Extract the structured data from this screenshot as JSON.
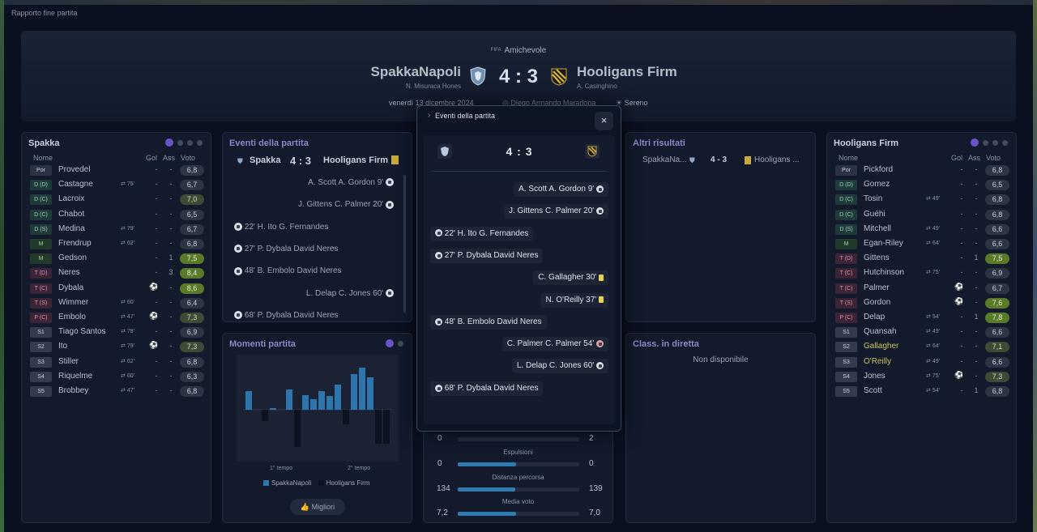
{
  "window": {
    "title": "Rapporto fine partita"
  },
  "header": {
    "competition_badge": "FIFA",
    "competition": "Amichevole",
    "home": {
      "name": "SpakkaNapoli",
      "coach": "N. Misuraca Hones"
    },
    "away": {
      "name": "Hooligans Firm",
      "coach": "A. Casinghino"
    },
    "score": "4 : 3",
    "date": "venerdì 13 dicembre 2024",
    "stadium": "Diego Armando Maradona",
    "weather": "Sereno"
  },
  "home_roster": {
    "title": "Spakka",
    "columns": {
      "name": "Nome",
      "gol": "Gol",
      "ass": "Ass",
      "voto": "Voto"
    },
    "players": [
      {
        "pos": "Por",
        "name": "Provedel",
        "sub": "",
        "gol": "-",
        "ass": "-",
        "rating": "6,8"
      },
      {
        "pos": "D (D)",
        "name": "Castagne",
        "sub": "75'",
        "gol": "-",
        "ass": "-",
        "rating": "6,7"
      },
      {
        "pos": "D (C)",
        "name": "Lacroix",
        "sub": "",
        "gol": "-",
        "ass": "-",
        "rating": "7,0"
      },
      {
        "pos": "D (C)",
        "name": "Chabot",
        "sub": "",
        "gol": "-",
        "ass": "-",
        "rating": "6,5"
      },
      {
        "pos": "D (S)",
        "name": "Medina",
        "sub": "79'",
        "gol": "-",
        "ass": "-",
        "rating": "6,7"
      },
      {
        "pos": "M",
        "name": "Frendrup",
        "sub": "62'",
        "gol": "-",
        "ass": "-",
        "rating": "6,8"
      },
      {
        "pos": "M",
        "name": "Gedson",
        "sub": "",
        "gol": "-",
        "ass": "1",
        "rating": "7,5"
      },
      {
        "pos": "T (D)",
        "name": "Neres",
        "sub": "",
        "gol": "-",
        "ass": "3",
        "rating": "8,4"
      },
      {
        "pos": "T (C)",
        "name": "Dybala",
        "sub": "",
        "gol": "",
        "ass": "-",
        "rating": "8,6"
      },
      {
        "pos": "T (S)",
        "name": "Wimmer",
        "sub": "60'",
        "gol": "-",
        "ass": "-",
        "rating": "6,4"
      },
      {
        "pos": "P (C)",
        "name": "Embolo",
        "sub": "47'",
        "gol": "",
        "ass": "-",
        "rating": "7,3"
      },
      {
        "pos": "S1",
        "name": "Tiago Santos",
        "sub": "78'",
        "gol": "-",
        "ass": "-",
        "rating": "6,9"
      },
      {
        "pos": "S2",
        "name": "Ito",
        "sub": "79'",
        "gol": "",
        "ass": "-",
        "rating": "7,3"
      },
      {
        "pos": "S3",
        "name": "Stiller",
        "sub": "62'",
        "gol": "-",
        "ass": "-",
        "rating": "6,8"
      },
      {
        "pos": "S4",
        "name": "Riquelme",
        "sub": "60'",
        "gol": "-",
        "ass": "-",
        "rating": "6,3"
      },
      {
        "pos": "S5",
        "name": "Brobbey",
        "sub": "47'",
        "gol": "-",
        "ass": "-",
        "rating": "6,8"
      }
    ]
  },
  "away_roster": {
    "title": "Hooligans Firm",
    "columns": {
      "name": "Nome",
      "gol": "Gol",
      "ass": "Ass",
      "voto": "Voto"
    },
    "players": [
      {
        "pos": "Por",
        "name": "Pickford",
        "sub": "",
        "gol": "-",
        "ass": "-",
        "rating": "6,8"
      },
      {
        "pos": "D (D)",
        "name": "Gomez",
        "sub": "",
        "gol": "-",
        "ass": "-",
        "rating": "6,5"
      },
      {
        "pos": "D (C)",
        "name": "Tosin",
        "sub": "49'",
        "gol": "-",
        "ass": "-",
        "rating": "6,8"
      },
      {
        "pos": "D (C)",
        "name": "Guéhi",
        "sub": "",
        "gol": "-",
        "ass": "-",
        "rating": "6,8"
      },
      {
        "pos": "D (S)",
        "name": "Mitchell",
        "sub": "49'",
        "gol": "-",
        "ass": "-",
        "rating": "6,6"
      },
      {
        "pos": "M",
        "name": "Egan-Riley",
        "sub": "64'",
        "gol": "-",
        "ass": "-",
        "rating": "6,6"
      },
      {
        "pos": "T (D)",
        "name": "Gittens",
        "sub": "",
        "gol": "-",
        "ass": "1",
        "rating": "7,5"
      },
      {
        "pos": "T (C)",
        "name": "Hutchinson",
        "sub": "75'",
        "gol": "-",
        "ass": "-",
        "rating": "6,9"
      },
      {
        "pos": "T (C)",
        "name": "Palmer",
        "sub": "",
        "gol": "",
        "ass": "-",
        "rating": "6,7"
      },
      {
        "pos": "T (S)",
        "name": "Gordon",
        "sub": "",
        "gol": "",
        "ass": "-",
        "rating": "7,6"
      },
      {
        "pos": "P (C)",
        "name": "Delap",
        "sub": "54'",
        "gol": "-",
        "ass": "1",
        "rating": "7,8"
      },
      {
        "pos": "S1",
        "name": "Quansah",
        "sub": "49'",
        "gol": "-",
        "ass": "-",
        "rating": "6,6"
      },
      {
        "pos": "S2",
        "name": "Gallagher",
        "sub": "64'",
        "gol": "-",
        "ass": "-",
        "rating": "7,1"
      },
      {
        "pos": "S3",
        "name": "O'Reilly",
        "sub": "49'",
        "gol": "-",
        "ass": "-",
        "rating": "6,6"
      },
      {
        "pos": "S4",
        "name": "Jones",
        "sub": "75'",
        "gol": "",
        "ass": "-",
        "rating": "7,3"
      },
      {
        "pos": "S5",
        "name": "Scott",
        "sub": "54'",
        "gol": "-",
        "ass": "1",
        "rating": "6,8"
      }
    ]
  },
  "events_panel": {
    "title": "Eventi della partita",
    "home": "Spakka",
    "score": "4 : 3",
    "away": "Hooligans Firm",
    "events": [
      {
        "side": "away",
        "text": "A. Scott A. Gordon 9'"
      },
      {
        "side": "away",
        "text": "J. Gittens C. Palmer 20'"
      },
      {
        "side": "home",
        "text": "22' H. Ito G. Fernandes"
      },
      {
        "side": "home",
        "text": "27' P. Dybala David Neres"
      },
      {
        "side": "home",
        "text": "48' B. Embolo David Neres"
      },
      {
        "side": "away",
        "text": "L. Delap C. Jones 60'"
      },
      {
        "side": "home",
        "text": "68' P. Dybala David Neres"
      }
    ]
  },
  "moments": {
    "title": "Momenti partita",
    "half1": "1° tempo",
    "half2": "2° tempo",
    "legend_home": "SpakkaNapoli",
    "legend_away": "Hooligans Firm",
    "button": "Migliori"
  },
  "other_results": {
    "title": "Altri risultati",
    "home": "SpakkaNa...",
    "score": "4 - 3",
    "away": "Hooligans ..."
  },
  "live_table": {
    "title": "Class. in diretta",
    "message": "Non disponibile"
  },
  "stats": [
    {
      "label": "",
      "home": "0",
      "away": "2",
      "fill": 0.0
    },
    {
      "label": "Espulsioni",
      "home": "0",
      "away": "0",
      "fill": 0.48
    },
    {
      "label": "Distanza percorsa",
      "home": "134",
      "away": "139",
      "fill": 0.47
    },
    {
      "label": "Media voto",
      "home": "7,2",
      "away": "7,0",
      "fill": 0.48
    }
  ],
  "modal": {
    "title": "Eventi della partita",
    "score": "4 : 3",
    "close": "×",
    "events": [
      {
        "side": "away",
        "text": "A. Scott A. Gordon 9'",
        "icon": "goal"
      },
      {
        "side": "away",
        "text": "J. Gittens C. Palmer 20'",
        "icon": "goal"
      },
      {
        "side": "home",
        "text": "22' H. Ito G. Fernandes",
        "icon": "goal"
      },
      {
        "side": "home",
        "text": "27' P. Dybala David Neres",
        "icon": "goal"
      },
      {
        "side": "away",
        "text": "C. Gallagher 30'",
        "icon": "yellow"
      },
      {
        "side": "away",
        "text": "N. O'Reilly 37'",
        "icon": "yellow"
      },
      {
        "side": "home",
        "text": "48' B. Embolo David Neres",
        "icon": "goal"
      },
      {
        "side": "away",
        "text": "C. Palmer C. Palmer 54'",
        "icon": "missed"
      },
      {
        "side": "away",
        "text": "L. Delap C. Jones 60'",
        "icon": "goal"
      },
      {
        "side": "home",
        "text": "68' P. Dybala David Neres",
        "icon": "goal"
      }
    ]
  }
}
